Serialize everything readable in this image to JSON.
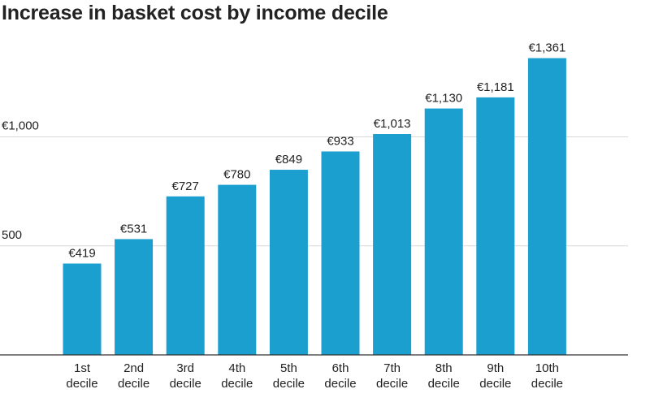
{
  "chart_data": {
    "type": "bar",
    "title": "Increase in basket cost by income decile",
    "xlabel": "",
    "ylabel": "",
    "categories": [
      [
        "1st",
        "decile"
      ],
      [
        "2nd",
        "decile"
      ],
      [
        "3rd",
        "decile"
      ],
      [
        "4th",
        "decile"
      ],
      [
        "5th",
        "decile"
      ],
      [
        "6th",
        "decile"
      ],
      [
        "7th",
        "decile"
      ],
      [
        "8th",
        "decile"
      ],
      [
        "9th",
        "decile"
      ],
      [
        "10th",
        "decile"
      ]
    ],
    "values": [
      419,
      531,
      727,
      780,
      849,
      933,
      1013,
      1130,
      1181,
      1361
    ],
    "data_labels": [
      "€419",
      "€531",
      "€727",
      "€780",
      "€849",
      "€933",
      "€1,013",
      "€1,130",
      "€1,181",
      "€1,361"
    ],
    "yticks": [
      {
        "value": 500,
        "label": "500"
      },
      {
        "value": 1000,
        "label": "€1,000"
      }
    ],
    "ylim": [
      0,
      1400
    ],
    "grid": true,
    "bar_color": "#1a9fcf",
    "grid_color": "#d9d9d9",
    "axis_color": "#333333"
  }
}
